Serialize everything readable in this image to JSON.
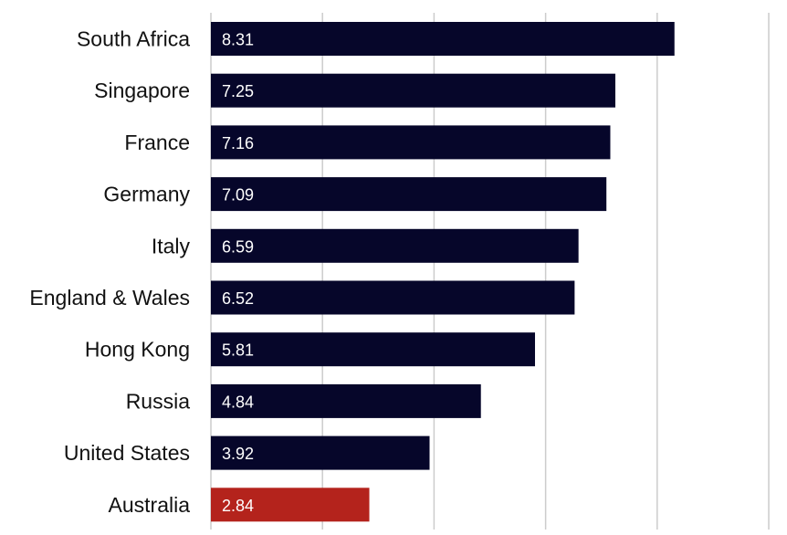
{
  "chart_data": {
    "type": "bar",
    "orientation": "horizontal",
    "categories": [
      "South Africa",
      "Singapore",
      "France",
      "Germany",
      "Italy",
      "England & Wales",
      "Hong Kong",
      "Russia",
      "United States",
      "Australia"
    ],
    "values": [
      8.31,
      7.25,
      7.16,
      7.09,
      6.59,
      6.52,
      5.81,
      4.84,
      3.92,
      2.84
    ],
    "value_labels": [
      "8.31",
      "7.25",
      "7.16",
      "7.09",
      "6.59",
      "6.52",
      "5.81",
      "4.84",
      "3.92",
      "2.84"
    ],
    "xlim": [
      0,
      10
    ],
    "gridlines_at": [
      0,
      2,
      4,
      6,
      8,
      10
    ],
    "grid": true,
    "legend": "none",
    "colors": {
      "default_bar": "#06062a",
      "highlight_bar": "#b4231c",
      "grid": "#cccccc",
      "value_text": "#ffffff",
      "category_text": "#111111"
    },
    "highlight_category": "Australia"
  }
}
